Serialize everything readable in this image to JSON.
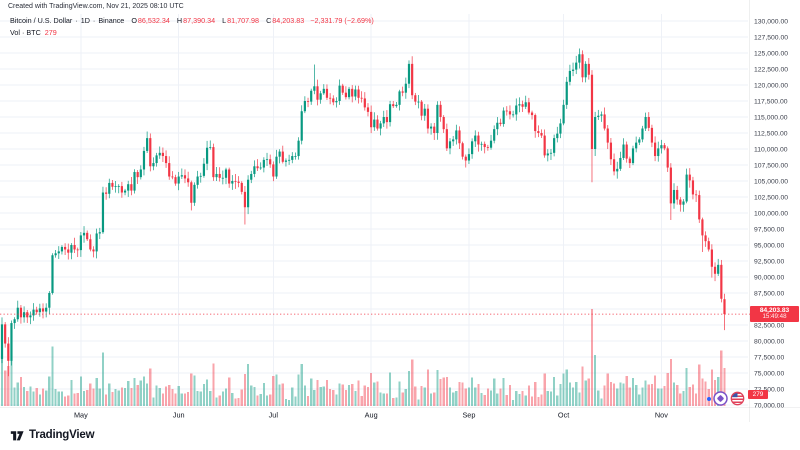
{
  "header": {
    "attribution": "Created with TradingView.com, Nov 21, 2025 08:10 UTC",
    "legend": {
      "symbol": "Bitcoin / U.S. Dollar",
      "separator": "·",
      "interval": "1D",
      "exchange": "Binance",
      "o_label": "O",
      "o": "86,532.34",
      "h_label": "H",
      "h": "87,390.34",
      "l_label": "L",
      "l": "81,707.98",
      "c_label": "C",
      "c": "84,203.83",
      "change": "−2,331.79 (−2.69%)"
    },
    "volume_row": {
      "label": "Vol · BTC",
      "value": "279"
    }
  },
  "badges": {
    "price": "84,203.83",
    "countdown": "15:49:48",
    "volume": "279"
  },
  "footer": {
    "brand": "TradingView"
  },
  "colors": {
    "up": "#089981",
    "down": "#f23645",
    "vol_up": "rgba(8,153,129,0.45)",
    "vol_down": "rgba(242,54,69,0.45)",
    "grid": "#eef1f7",
    "axis_text": "#3a3e4a",
    "month_text": "#131722",
    "price_line": "#f23645",
    "badge_bg": "#f23645",
    "event_purple": "#7a52c7",
    "event_flag_red": "#e0425a",
    "event_flag_blue": "#3c57a8",
    "event_dot_blue": "#2962ff"
  },
  "chart_data": {
    "type": "candlestick",
    "title": "Bitcoin / U.S. Dollar",
    "exchange": "Binance",
    "interval": "1D",
    "start_date": "2025-04-06",
    "end_date": "2025-11-21",
    "grid": true,
    "legend_position": "top-left",
    "price_axis": {
      "min": 70000,
      "max": 130000,
      "step": 2500,
      "side": "right"
    },
    "months": [
      {
        "label": "May",
        "day": 25
      },
      {
        "label": "Jun",
        "day": 56
      },
      {
        "label": "Jul",
        "day": 86
      },
      {
        "label": "Aug",
        "day": 117
      },
      {
        "label": "Sep",
        "day": 148
      },
      {
        "label": "Oct",
        "day": 178
      },
      {
        "label": "Nov",
        "day": 209
      }
    ],
    "unit": "USD, close values stored in thousands",
    "first_open_k": 77.2,
    "closes_k": [
      82.6,
      79.6,
      76.9,
      82.8,
      83.4,
      85.2,
      83.7,
      84.5,
      83.7,
      84.0,
      84.9,
      84.5,
      85.1,
      84.6,
      85.2,
      87.5,
      93.4,
      93.7,
      94.0,
      94.7,
      94.3,
      93.8,
      95.0,
      94.3,
      94.2,
      96.5,
      96.9,
      95.9,
      94.3,
      94.0,
      96.8,
      97.0,
      103.2,
      103.0,
      104.7,
      104.1,
      104.2,
      104.2,
      103.2,
      103.5,
      104.5,
      103.5,
      106.4,
      105.6,
      106.8,
      109.7,
      111.7,
      107.3,
      107.8,
      109.0,
      109.4,
      108.9,
      107.8,
      105.7,
      105.6,
      104.6,
      105.7,
      105.9,
      105.4,
      104.8,
      101.6,
      104.4,
      105.7,
      105.8,
      107.7,
      110.2,
      110.3,
      105.6,
      106.1,
      105.5,
      105.5,
      106.8,
      104.6,
      105.0,
      104.9,
      104.7,
      103.3,
      100.9,
      105.2,
      106.1,
      107.3,
      107.0,
      107.1,
      108.3,
      108.4,
      107.6,
      105.7,
      108.8,
      109.6,
      108.0,
      108.2,
      108.3,
      108.9,
      108.9,
      111.3,
      115.9,
      117.5,
      117.4,
      119.1,
      119.8,
      117.7,
      118.7,
      119.4,
      118.0,
      117.9,
      117.3,
      117.5,
      119.9,
      118.8,
      118.1,
      119.4,
      118.2,
      119.3,
      118.0,
      117.9,
      116.5,
      115.8,
      113.4,
      114.6,
      113.2,
      114.0,
      115.0,
      114.2,
      117.0,
      116.7,
      116.9,
      119.0,
      118.8,
      120.2,
      123.3,
      118.4,
      117.4,
      117.4,
      115.2,
      116.3,
      113.2,
      113.5,
      112.5,
      116.9,
      115.0,
      113.1,
      110.1,
      111.2,
      111.5,
      112.9,
      110.9,
      108.8,
      108.2,
      109.2,
      111.2,
      112.1,
      110.7,
      110.8,
      110.3,
      110.2,
      111.3,
      113.1,
      114.1,
      113.9,
      116.0,
      115.9,
      115.4,
      115.4,
      116.8,
      117.0,
      116.6,
      117.3,
      115.7,
      115.3,
      112.8,
      112.5,
      112.1,
      109.0,
      109.3,
      109.4,
      111.7,
      112.4,
      114.0,
      116.9,
      120.5,
      122.2,
      122.4,
      123.5,
      124.8,
      121.2,
      123.3,
      121.6,
      110.0,
      115.0,
      115.2,
      115.4,
      113.2,
      111.0,
      108.4,
      106.5,
      106.9,
      108.6,
      110.7,
      108.5,
      107.8,
      110.1,
      111.0,
      111.5,
      113.2,
      115.0,
      113.3,
      111.0,
      108.9,
      110.1,
      110.6,
      110.1,
      107.1,
      101.5,
      103.6,
      102.1,
      101.3,
      101.8,
      106.0,
      105.1,
      102.9,
      102.8,
      99.0,
      96.5,
      95.6,
      94.3,
      91.6,
      90.5,
      91.9,
      86.6,
      84.2
    ],
    "wick_overrides": [
      {
        "i": 2,
        "low": 74.5
      },
      {
        "i": 60,
        "low": 100.4
      },
      {
        "i": 77,
        "low": 98.2
      },
      {
        "i": 99,
        "high": 123.2
      },
      {
        "i": 130,
        "high": 124.5
      },
      {
        "i": 163,
        "high": 117.9
      },
      {
        "i": 183,
        "high": 125.7
      },
      {
        "i": 187,
        "low": 104.8
      },
      {
        "i": 212,
        "low": 98.9
      },
      {
        "i": 222,
        "low": 93.9
      },
      {
        "i": 225,
        "low": 89.9
      },
      {
        "i": 229,
        "open": 86.532,
        "high": 87.39,
        "low": 81.708,
        "close": 84.204
      }
    ],
    "last_candle": {
      "open": 86532.34,
      "high": 87390.34,
      "low": 81707.98,
      "close": 84203.83
    },
    "change": "−2,331.79",
    "change_pct": "−2.69%",
    "price_line_value": 84203.83,
    "bar_countdown": "15:49:48",
    "volume_btc_today": 279,
    "volume_model": {
      "base": 5,
      "noise": 13,
      "per_pct": 7.5,
      "max": 96,
      "spikes": [
        {
          "i": 187,
          "h": 97
        }
      ]
    }
  }
}
